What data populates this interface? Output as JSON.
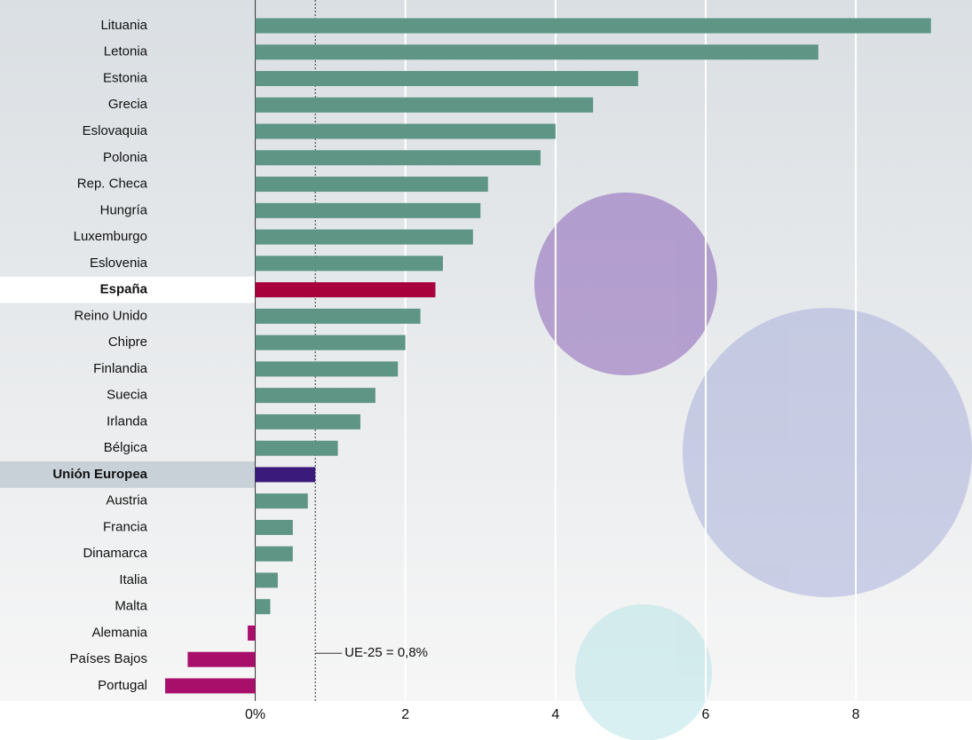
{
  "chart_data": {
    "type": "bar",
    "orientation": "horizontal",
    "categories": [
      "Lituania",
      "Letonia",
      "Estonia",
      "Grecia",
      "Eslovaquia",
      "Polonia",
      "Rep. Checa",
      "Hungría",
      "Luxemburgo",
      "Eslovenia",
      "España",
      "Reino Unido",
      "Chipre",
      "Finlandia",
      "Suecia",
      "Irlanda",
      "Bélgica",
      "Unión Europea",
      "Austria",
      "Francia",
      "Dinamarca",
      "Italia",
      "Malta",
      "Alemania",
      "Países Bajos",
      "Portugal"
    ],
    "values": [
      9.0,
      7.5,
      5.1,
      4.5,
      4.0,
      3.8,
      3.1,
      3.0,
      2.9,
      2.5,
      2.4,
      2.2,
      2.0,
      1.9,
      1.6,
      1.4,
      1.1,
      0.8,
      0.7,
      0.5,
      0.5,
      0.3,
      0.2,
      -0.1,
      -0.9,
      -1.2
    ],
    "colors": [
      "#5e9585",
      "#5e9585",
      "#5e9585",
      "#5e9585",
      "#5e9585",
      "#5e9585",
      "#5e9585",
      "#5e9585",
      "#5e9585",
      "#5e9585",
      "#a8003a",
      "#5e9585",
      "#5e9585",
      "#5e9585",
      "#5e9585",
      "#5e9585",
      "#5e9585",
      "#3a1a7a",
      "#5e9585",
      "#5e9585",
      "#5e9585",
      "#5e9585",
      "#5e9585",
      "#a80f6a",
      "#a80f6a",
      "#a80f6a"
    ],
    "highlight": [
      10,
      17
    ],
    "xlim": [
      -3.4,
      9.5
    ],
    "xticks": [
      {
        "value": 0,
        "label": "0%"
      },
      2,
      4,
      6,
      8
    ],
    "grid": true,
    "reference": {
      "value": 0.8,
      "label": "UE-25 = 0,8%"
    }
  }
}
